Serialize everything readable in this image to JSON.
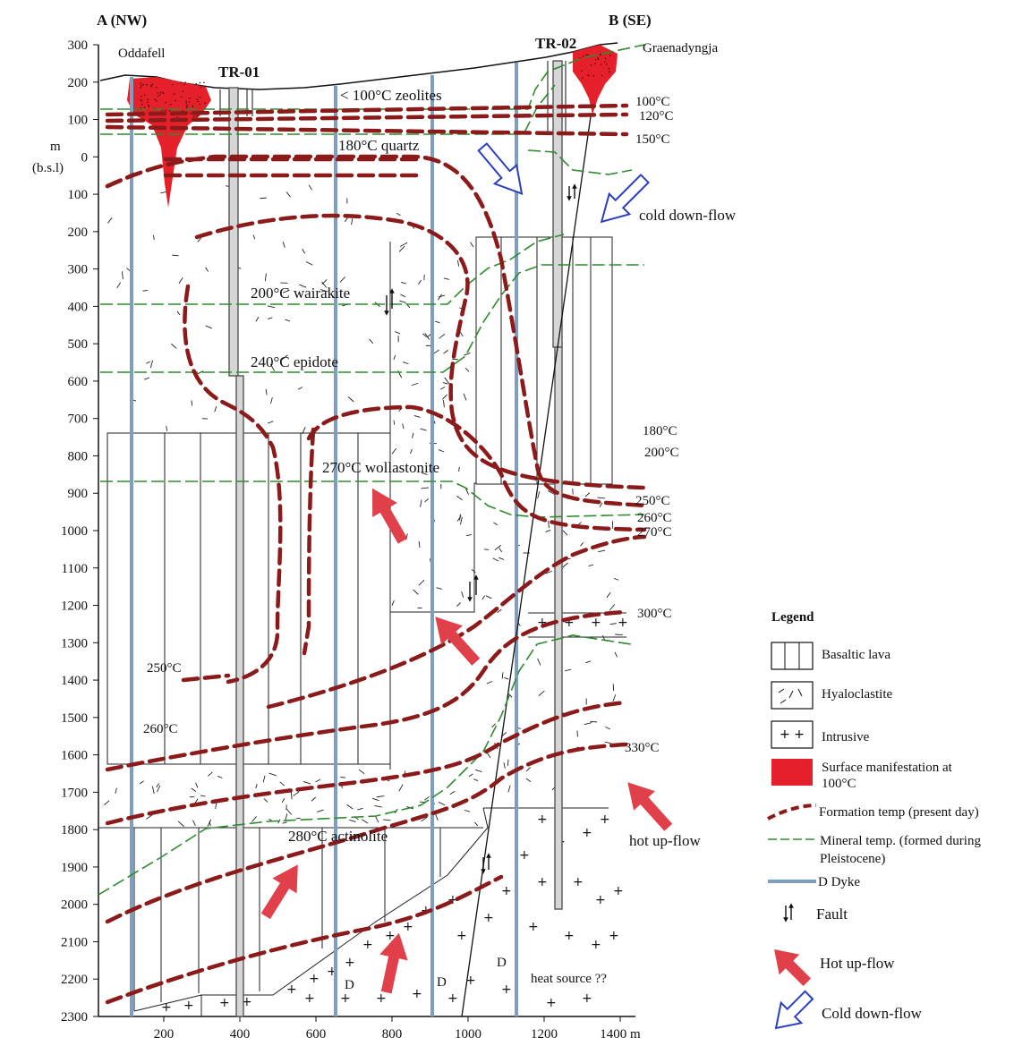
{
  "section": {
    "start_label": "A (NW)",
    "end_label": "B (SE)",
    "yunit_top": "m",
    "yunit_bottom": "(b.s.l)",
    "xunit": "m"
  },
  "depth_ticks": [
    "300",
    "200",
    "100",
    "0",
    "100",
    "200",
    "300",
    "400",
    "500",
    "600",
    "700",
    "800",
    "900",
    "1000",
    "1100",
    "1200",
    "1300",
    "1400",
    "1500",
    "1600",
    "1700",
    "1800",
    "1900",
    "2000",
    "2100",
    "2200",
    "2300"
  ],
  "distance_ticks": [
    "200",
    "400",
    "600",
    "800",
    "1000",
    "1200",
    "1400 m"
  ],
  "places": {
    "oddafell": "Oddafell",
    "graenadyngja": "Graenadyngja",
    "tr01": "TR-01",
    "tr02": "TR-02"
  },
  "mineral_zones": {
    "zeolites": "< 100°C zeolites",
    "quartz": "180°C quartz",
    "wairakite": "200°C wairakite",
    "epidote": "240°C epidote",
    "wollastonite": "270°C wollastonite",
    "actinolite": "280°C actinolite"
  },
  "isotherms_right": {
    "t100": "100°C",
    "t120": "120°C",
    "t150": "150°C",
    "t180": "180°C",
    "t200": "200°C",
    "t250": "250°C",
    "t260": "260°C",
    "t270": "270°C",
    "t300": "300°C",
    "t330": "330°C"
  },
  "isotherms_left": {
    "t250": "250°C",
    "t260": "260°C"
  },
  "flow_labels": {
    "cold": "cold down-flow",
    "hot": "hot up-flow"
  },
  "intrusive_marks": {
    "d1": "D",
    "d2": "D",
    "d3": "D",
    "heat_source": "heat source ??"
  },
  "legend": {
    "title": "Legend",
    "items": [
      {
        "label": "Basaltic lava"
      },
      {
        "label": "Hyaloclastite"
      },
      {
        "label": "Intrusive"
      },
      {
        "label": "Surface manifestation at",
        "label2": "100°C"
      },
      {
        "label": "Formation temp (present day)"
      },
      {
        "label": "Mineral temp. (formed during",
        "label2": "Pleistocene)"
      },
      {
        "label": "D  Dyke"
      },
      {
        "label": "Fault"
      },
      {
        "label": "Hot up-flow"
      },
      {
        "label": "Cold down-flow"
      }
    ]
  },
  "colors": {
    "isotherm": "#8b1a1a",
    "mineral": "#2e8b2e",
    "dyke": "#7f9fc0",
    "surface": "#e5202a",
    "hot_arrow": "#e0404a",
    "cold_arrow": "#2a3fc0"
  }
}
